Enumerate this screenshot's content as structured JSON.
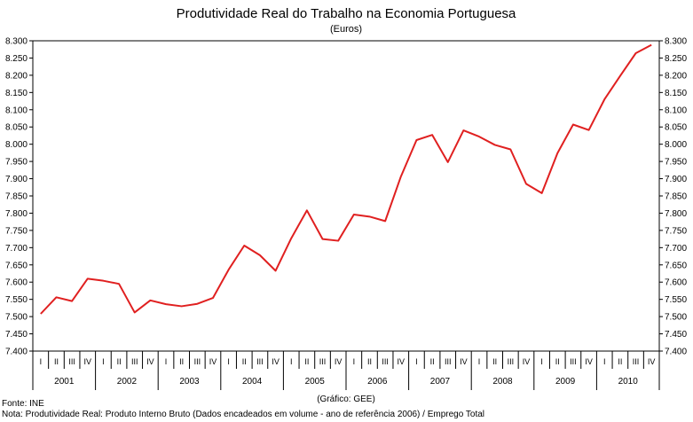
{
  "chart_data": {
    "type": "line",
    "title": "Produtividade Real do Trabalho na Economia Portuguesa",
    "subtitle": "(Euros)",
    "credit": "(Gráfico: GEE)",
    "source": "Fonte: INE",
    "note": "Nota: Produtividade Real: Produto Interno Bruto (Dados encadeados em volume - ano de referência 2006) / Emprego Total",
    "ylim": [
      7400,
      8300
    ],
    "yticks": [
      "7.400",
      "7.450",
      "7.500",
      "7.550",
      "7.600",
      "7.650",
      "7.700",
      "7.750",
      "7.800",
      "7.850",
      "7.900",
      "7.950",
      "8.000",
      "8.050",
      "8.100",
      "8.150",
      "8.200",
      "8.250",
      "8.300"
    ],
    "quarters": [
      "I",
      "II",
      "III",
      "IV"
    ],
    "years": [
      "2001",
      "2002",
      "2003",
      "2004",
      "2005",
      "2006",
      "2007",
      "2008",
      "2009",
      "2010"
    ],
    "line_color": "#e02020",
    "series": [
      {
        "name": "Produtividade Real",
        "values": [
          7508,
          7556,
          7545,
          7610,
          7604,
          7595,
          7512,
          7547,
          7536,
          7530,
          7537,
          7554,
          7636,
          7706,
          7678,
          7633,
          7727,
          7808,
          7725,
          7720,
          7796,
          7790,
          7777,
          7906,
          8012,
          8027,
          7948,
          8040,
          8022,
          7998,
          7985,
          7885,
          7858,
          7974,
          8057,
          8041,
          8130,
          8198,
          8264,
          8288
        ]
      }
    ]
  }
}
